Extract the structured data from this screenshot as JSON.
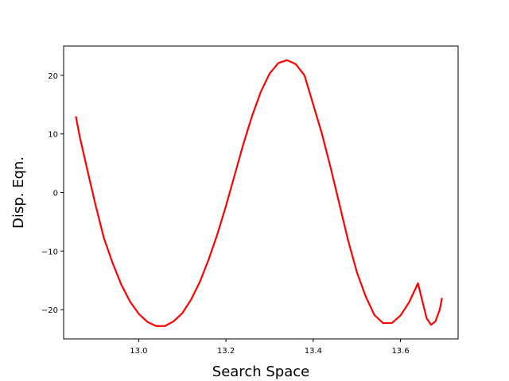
{
  "chart_data": {
    "type": "line",
    "title": "",
    "xlabel": "Search Space",
    "ylabel": "Disp. Eqn.",
    "xlim": [
      12.828,
      13.732
    ],
    "ylim": [
      -25,
      25
    ],
    "grid": false,
    "xticks": [
      13.0,
      13.2,
      13.4,
      13.6
    ],
    "xtick_labels": [
      "13.0",
      "13.2",
      "13.4",
      "13.6"
    ],
    "yticks": [
      20,
      10,
      0,
      -10,
      -20
    ],
    "ytick_labels": [
      "20",
      "10",
      "0",
      "−10",
      "−20"
    ],
    "series": [
      {
        "color": "#ff0000",
        "x": [
          12.856,
          12.865,
          12.88,
          12.9,
          12.92,
          12.94,
          12.96,
          12.98,
          13.0,
          13.02,
          13.04,
          13.06,
          13.08,
          13.1,
          13.12,
          13.14,
          13.16,
          13.18,
          13.2,
          13.22,
          13.24,
          13.26,
          13.28,
          13.3,
          13.32,
          13.34,
          13.36,
          13.38,
          13.4,
          13.42,
          13.44,
          13.46,
          13.48,
          13.5,
          13.52,
          13.54,
          13.56,
          13.58,
          13.6,
          13.62,
          13.64,
          13.66,
          13.67,
          13.68,
          13.69,
          13.695
        ],
        "y": [
          13.0,
          9.5,
          4.6,
          -1.8,
          -7.7,
          -12.0,
          -15.7,
          -18.6,
          -20.7,
          -22.1,
          -22.8,
          -22.8,
          -22.0,
          -20.6,
          -18.3,
          -15.3,
          -11.5,
          -7.2,
          -2.3,
          3.0,
          8.3,
          13.1,
          17.2,
          20.3,
          22.1,
          22.6,
          21.9,
          20.0,
          15.0,
          10.0,
          4.2,
          -2.0,
          -8.2,
          -13.6,
          -17.7,
          -20.9,
          -22.3,
          -22.3,
          -21.0,
          -18.7,
          -15.5,
          -21.5,
          -22.6,
          -22.0,
          -20.0,
          -18.0
        ]
      }
    ]
  }
}
